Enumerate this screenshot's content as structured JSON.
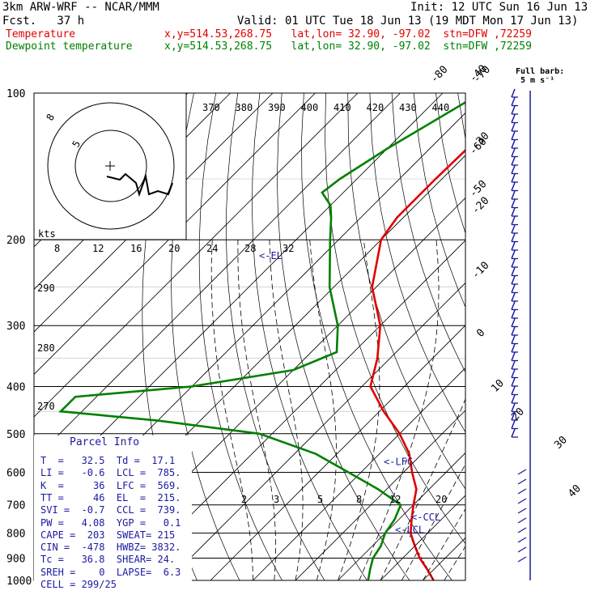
{
  "header": {
    "model": "3km ARW-WRF -- NCAR/MMM",
    "init": "Init: 12 UTC Sun 16 Jun 13",
    "fcst": "Fcst.   37 h",
    "valid": "Valid: 01 UTC Tue 18 Jun 13 (19 MDT Mon 17 Jun 13)",
    "temp_label": "Temperature",
    "temp_loc": "x,y=514.53,268.75   lat,lon= 32.90, -97.02  stn=DFW ,72259",
    "dew_label": "Dewpoint temperature",
    "dew_loc": "x,y=514.53,268.75   lat,lon= 32.90, -97.02  stn=DFW ,72259"
  },
  "barb_legend": {
    "line1": "Full barb:",
    "line2": "5 m s⁻¹"
  },
  "hodograph": {
    "speed_label_kts": "kts",
    "ring_labels": [
      "8",
      "5"
    ]
  },
  "parcel_info": {
    "title": "Parcel Info",
    "rows": [
      "T  =   32.5  Td =  17.1",
      "LI =   -0.6  LCL =  785.",
      "K  =     36  LFC =  569.",
      "TT =     46  EL  =  215.",
      "SVI =  -0.7  CCL =  739.",
      "PW =   4.08  YGP =   0.1",
      "CAPE =  203  SWEAT= 215",
      "CIN =  -478  HWBZ= 3832.",
      "Tc =   36.8  SHEAR= 24.",
      "SREH =    0  LAPSE=  6.3",
      "CELL = 299/25"
    ]
  },
  "chart_data": {
    "type": "line",
    "title": "",
    "y_axis": {
      "label": "",
      "scale": "log",
      "reversed": true,
      "ticks": [
        100,
        200,
        300,
        400,
        500,
        600,
        700,
        800,
        900,
        1000
      ]
    },
    "isotherm_labels": [
      -80,
      -70,
      -60,
      -50,
      -40,
      -30,
      -20,
      -10,
      0,
      10,
      20,
      30,
      40
    ],
    "theta_labels": [
      370,
      380,
      390,
      400,
      410,
      420,
      430,
      440
    ],
    "theta_e_labels_lower": [
      290,
      280,
      270
    ],
    "mixing_ratio_upper": [
      8,
      12,
      16,
      20,
      24,
      28,
      32
    ],
    "mixing_ratio_lower": [
      2,
      3,
      5,
      8,
      12,
      20
    ],
    "levels": [
      {
        "text": "<-EL",
        "pressure": 215
      },
      {
        "text": "<-LFC",
        "pressure": 569
      },
      {
        "text": "<-CCL",
        "pressure": 739
      },
      {
        "text": "<-LCL",
        "pressure": 785
      }
    ],
    "series": [
      {
        "name": "Temperature",
        "color": "#e00000",
        "points": [
          [
            100,
            -60
          ],
          [
            120,
            -61
          ],
          [
            150,
            -61.5
          ],
          [
            180,
            -61.5
          ],
          [
            200,
            -60
          ],
          [
            250,
            -51
          ],
          [
            300,
            -40
          ],
          [
            350,
            -33
          ],
          [
            400,
            -28
          ],
          [
            450,
            -19
          ],
          [
            500,
            -10
          ],
          [
            550,
            -3
          ],
          [
            600,
            2
          ],
          [
            650,
            7
          ],
          [
            700,
            10
          ],
          [
            750,
            13
          ],
          [
            800,
            16
          ],
          [
            850,
            20
          ],
          [
            900,
            24
          ],
          [
            950,
            28.5
          ],
          [
            1000,
            32.5
          ]
        ]
      },
      {
        "name": "Dewpoint temperature",
        "color": "#008000",
        "points": [
          [
            100,
            -71
          ],
          [
            130,
            -80
          ],
          [
            150,
            -84
          ],
          [
            160,
            -85
          ],
          [
            170,
            -80
          ],
          [
            180,
            -77
          ],
          [
            200,
            -72
          ],
          [
            250,
            -61
          ],
          [
            300,
            -50
          ],
          [
            340,
            -44
          ],
          [
            370,
            -50
          ],
          [
            400,
            -70
          ],
          [
            420,
            -95
          ],
          [
            450,
            -95
          ],
          [
            470,
            -70
          ],
          [
            500,
            -43
          ],
          [
            550,
            -25
          ],
          [
            600,
            -13
          ],
          [
            650,
            -2
          ],
          [
            700,
            7
          ],
          [
            750,
            9
          ],
          [
            800,
            10
          ],
          [
            850,
            12
          ],
          [
            900,
            13
          ],
          [
            950,
            15
          ],
          [
            1000,
            17.1
          ]
        ]
      }
    ]
  }
}
